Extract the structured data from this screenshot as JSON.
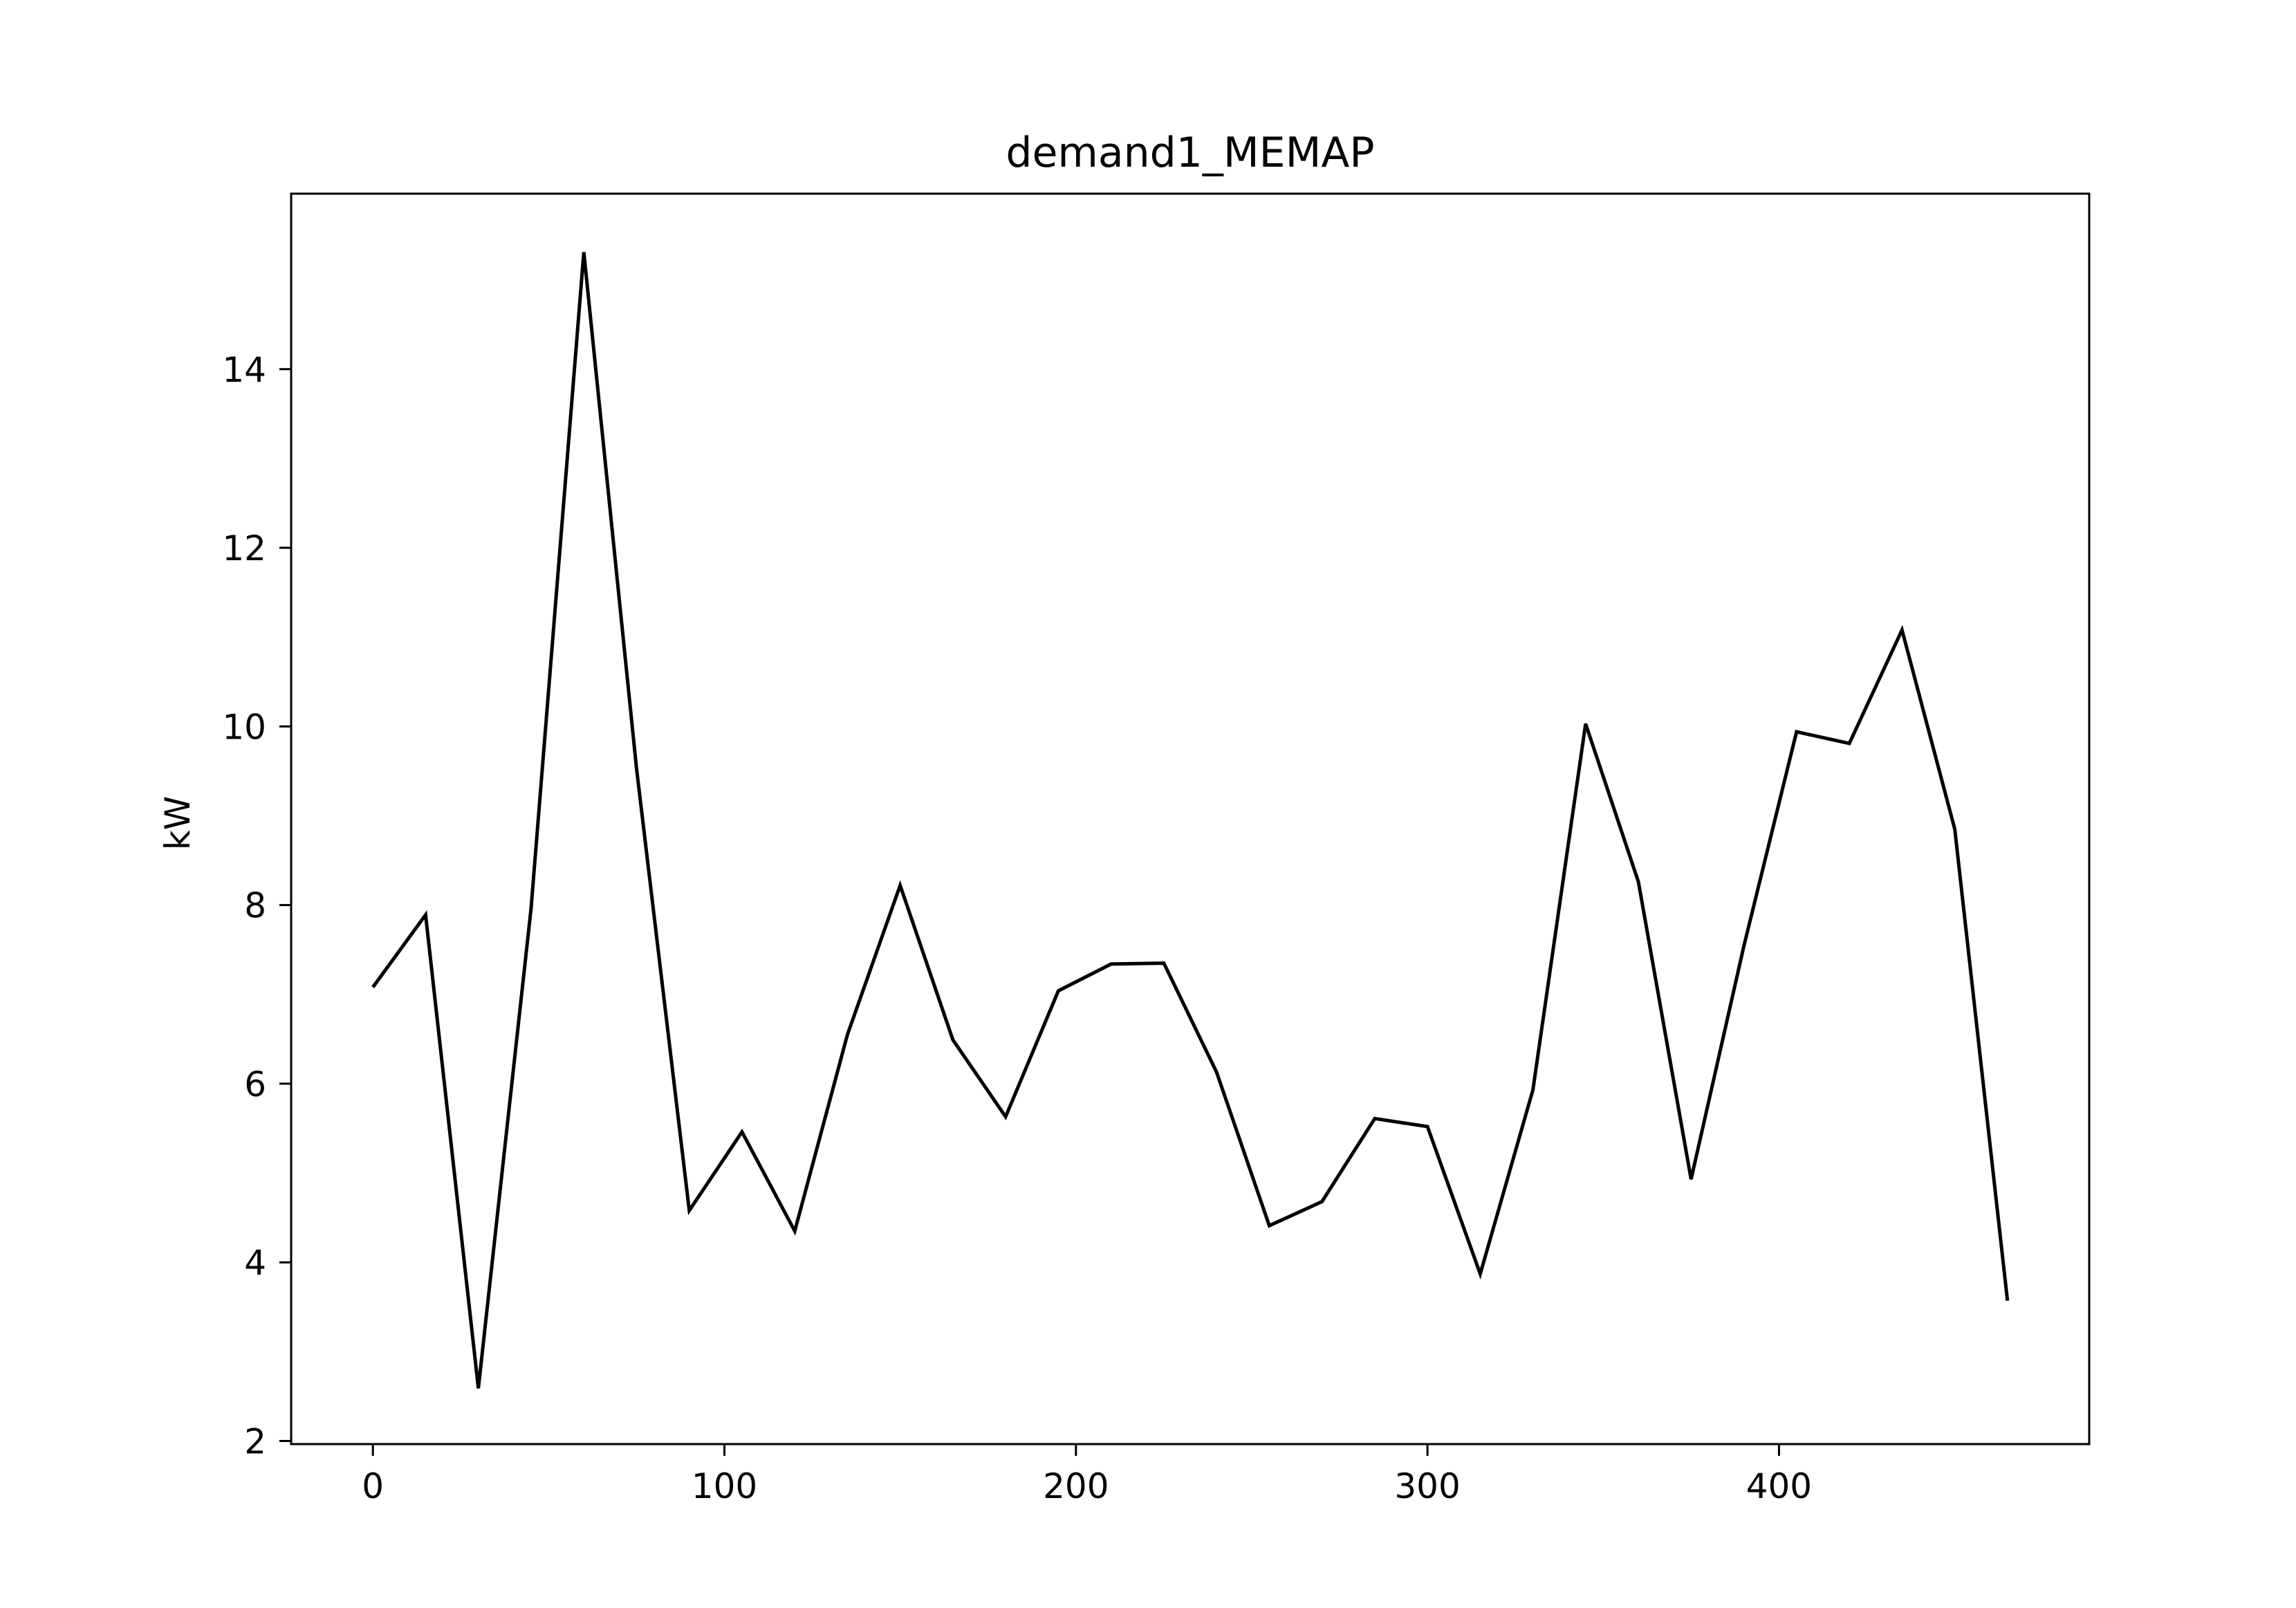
{
  "chart_data": {
    "type": "line",
    "title": "demand1_MEMAP",
    "xlabel": "",
    "ylabel": "kW",
    "xlim": [
      -23.25,
      488.25
    ],
    "ylim": [
      1.965,
      15.965
    ],
    "x_ticks": [
      0,
      100,
      200,
      300,
      400
    ],
    "y_ticks": [
      2,
      4,
      6,
      8,
      10,
      12,
      14
    ],
    "grid": false,
    "legend": "none",
    "series": [
      {
        "color": "#000000",
        "x": [
          0,
          15,
          30,
          45,
          60,
          75,
          90,
          105,
          120,
          135,
          150,
          165,
          180,
          195,
          210,
          225,
          240,
          255,
          270,
          285,
          300,
          315,
          330,
          345,
          360,
          375,
          390,
          405,
          420,
          435,
          450,
          465
        ],
        "y": [
          7.08,
          7.89,
          2.59,
          7.96,
          15.31,
          9.53,
          4.58,
          5.46,
          4.35,
          6.55,
          8.22,
          6.49,
          5.63,
          7.04,
          7.34,
          7.35,
          6.13,
          4.41,
          4.68,
          5.61,
          5.52,
          3.87,
          5.93,
          10.03,
          8.26,
          4.93,
          7.54,
          9.94,
          9.81,
          11.08,
          8.85,
          3.57
        ]
      }
    ]
  }
}
